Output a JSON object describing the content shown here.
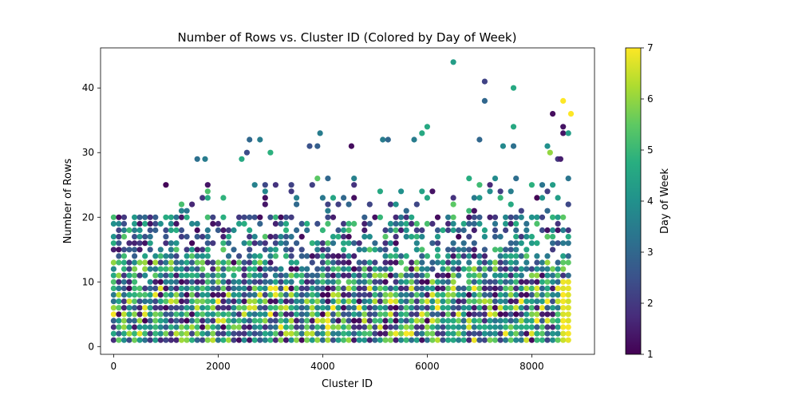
{
  "chart_data": {
    "type": "scatter",
    "title": "Number of Rows vs. Cluster ID (Colored by Day of Week)",
    "xlabel": "Cluster ID",
    "ylabel": "Number of Rows",
    "xlim": [
      -250,
      9200
    ],
    "ylim": [
      -1.2,
      46.2
    ],
    "xticks": [
      0,
      2000,
      4000,
      6000,
      8000
    ],
    "yticks": [
      0,
      10,
      20,
      30,
      40
    ],
    "colorbar": {
      "label": "Day of Week",
      "range": [
        1,
        7
      ],
      "ticks": [
        1,
        2,
        3,
        4,
        5,
        6,
        7
      ],
      "colormap": "viridis"
    },
    "grid": false,
    "x_range_of_points": [
      0,
      8760
    ],
    "x_spacing": 100,
    "notable_points": [
      {
        "x": 6500,
        "y": 44,
        "day": 4.3
      },
      {
        "x": 7100,
        "y": 41,
        "day": 2.2
      },
      {
        "x": 7650,
        "y": 40,
        "day": 4.6
      },
      {
        "x": 7100,
        "y": 38,
        "day": 3.0
      },
      {
        "x": 8600,
        "y": 38,
        "day": 7.0
      },
      {
        "x": 8750,
        "y": 36,
        "day": 7.0
      },
      {
        "x": 8400,
        "y": 36,
        "day": 1.2
      },
      {
        "x": 6000,
        "y": 34,
        "day": 4.6
      },
      {
        "x": 7650,
        "y": 34,
        "day": 4.6
      },
      {
        "x": 8600,
        "y": 34,
        "day": 1.3
      },
      {
        "x": 3950,
        "y": 33,
        "day": 3.5
      },
      {
        "x": 5900,
        "y": 33,
        "day": 4.6
      },
      {
        "x": 8600,
        "y": 33,
        "day": 1.3
      },
      {
        "x": 8700,
        "y": 33,
        "day": 4.3
      },
      {
        "x": 2600,
        "y": 32,
        "day": 3.0
      },
      {
        "x": 2800,
        "y": 32,
        "day": 3.5
      },
      {
        "x": 5150,
        "y": 32,
        "day": 3.5
      },
      {
        "x": 5250,
        "y": 32,
        "day": 3.0
      },
      {
        "x": 5750,
        "y": 32,
        "day": 3.5
      },
      {
        "x": 7000,
        "y": 32,
        "day": 3.0
      },
      {
        "x": 3750,
        "y": 31,
        "day": 2.5
      },
      {
        "x": 3900,
        "y": 31,
        "day": 2.8
      },
      {
        "x": 4550,
        "y": 31,
        "day": 1.2
      },
      {
        "x": 7450,
        "y": 31,
        "day": 3.8
      },
      {
        "x": 7650,
        "y": 31,
        "day": 3.2
      },
      {
        "x": 8300,
        "y": 31,
        "day": 4.0
      },
      {
        "x": 8350,
        "y": 30,
        "day": 6.0
      },
      {
        "x": 3000,
        "y": 30,
        "day": 4.8
      },
      {
        "x": 2550,
        "y": 30,
        "day": 2.4
      },
      {
        "x": 1600,
        "y": 29,
        "day": 3.2
      },
      {
        "x": 1750,
        "y": 29,
        "day": 3.5
      },
      {
        "x": 2450,
        "y": 29,
        "day": 4.6
      },
      {
        "x": 8500,
        "y": 29,
        "day": 2.0
      },
      {
        "x": 8550,
        "y": 29,
        "day": 1.5
      }
    ]
  }
}
